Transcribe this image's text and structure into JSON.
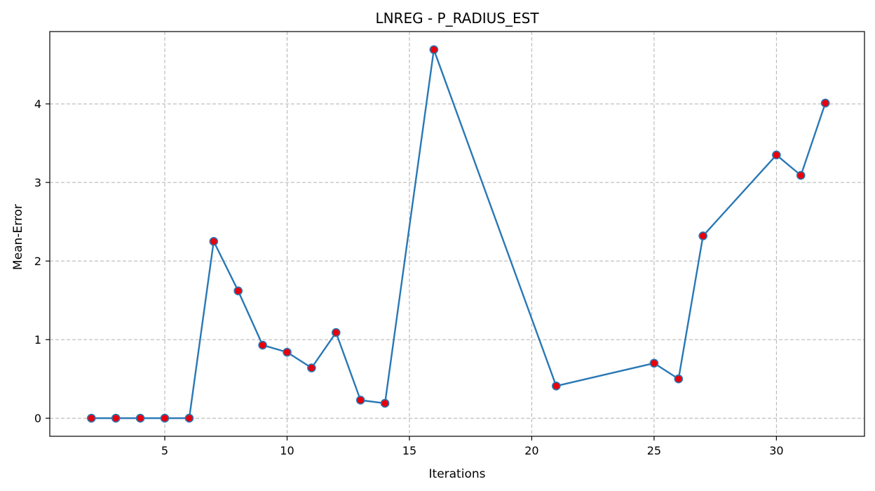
{
  "chart_data": {
    "type": "line",
    "title": "LNREG - P_RADIUS_EST",
    "xlabel": "Iterations",
    "ylabel": "Mean-Error",
    "xlim": [
      0.3,
      33.6
    ],
    "ylim": [
      -0.23,
      4.92
    ],
    "xticks": [
      5,
      10,
      15,
      20,
      25,
      30
    ],
    "yticks": [
      0,
      1,
      2,
      3,
      4
    ],
    "grid": true,
    "grid_style": "dashed",
    "line_color": "#2878b5",
    "marker_fill": "#e8000b",
    "marker_edge": "#2878b5",
    "series": [
      {
        "x": [
          2,
          3,
          4,
          5,
          6,
          7,
          8,
          9,
          10,
          11,
          12,
          13,
          14,
          16,
          21,
          25,
          26,
          27,
          30,
          31,
          32
        ],
        "y": [
          0.0,
          0.0,
          0.0,
          0.0,
          0.0,
          2.25,
          1.62,
          0.93,
          0.84,
          0.64,
          1.09,
          0.23,
          0.19,
          4.69,
          0.41,
          0.7,
          0.5,
          2.32,
          3.35,
          3.09,
          4.01
        ]
      }
    ]
  }
}
